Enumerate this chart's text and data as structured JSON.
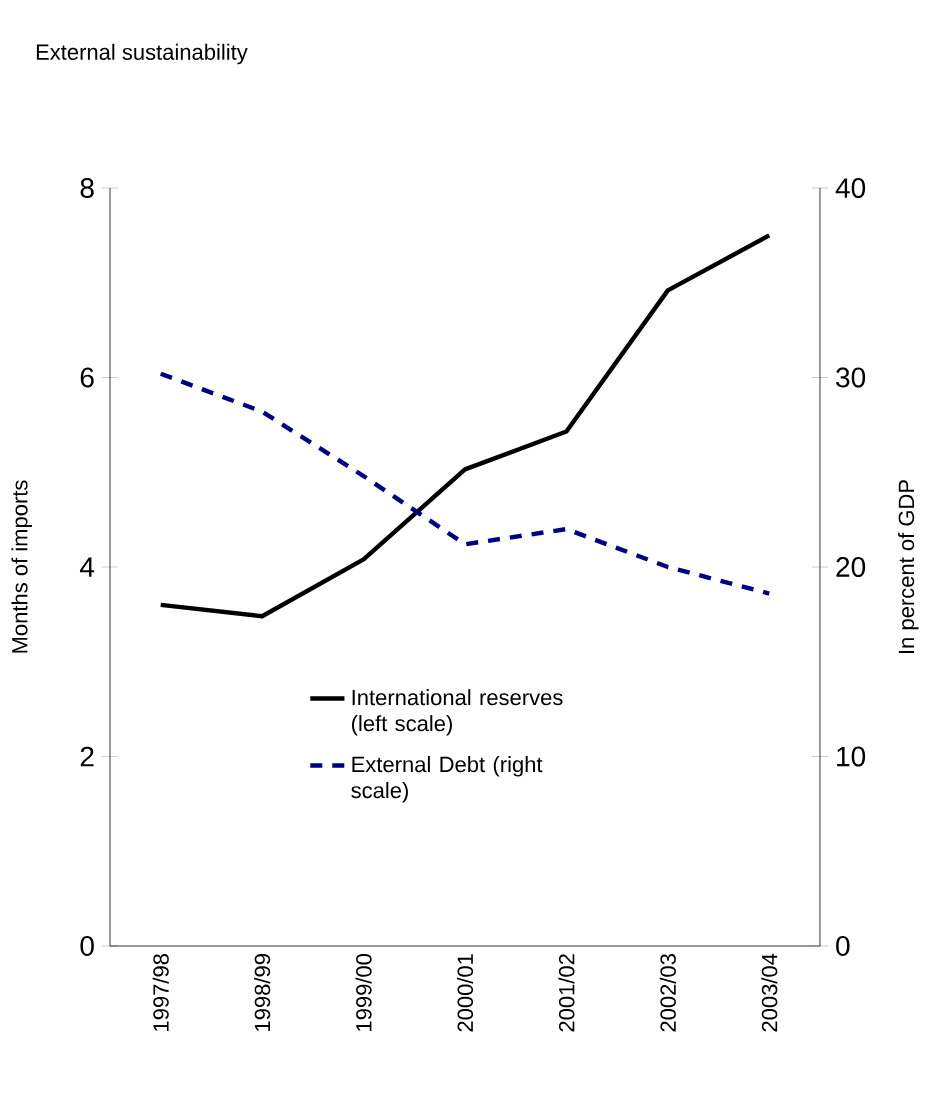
{
  "chart_data": {
    "type": "line",
    "title": "External sustainability",
    "categories": [
      "1997/98",
      "1998/99",
      "1999/00",
      "2000/01",
      "2001/02",
      "2002/03",
      "2003/04"
    ],
    "ylabel": "Months of imports",
    "y2label": "In percent of GDP",
    "ylim": [
      0,
      8
    ],
    "yticks": [
      0,
      2,
      4,
      6,
      8
    ],
    "y2lim": [
      0,
      40
    ],
    "y2ticks": [
      0,
      10,
      20,
      30,
      40
    ],
    "series": [
      {
        "name": "International reserves (left scale)",
        "color": "#000000",
        "line_style": "solid",
        "values": [
          3.6,
          3.48,
          4.08,
          5.03,
          5.43,
          6.92,
          7.5
        ]
      },
      {
        "name": "External Debt (right scale)",
        "color": "#000080",
        "line_style": "dashed",
        "axis": "y2",
        "values": [
          30.2,
          28.2,
          24.8,
          21.2,
          22.0,
          20.0,
          18.6
        ]
      }
    ],
    "legend": "center",
    "grid": false,
    "marker": "none"
  }
}
